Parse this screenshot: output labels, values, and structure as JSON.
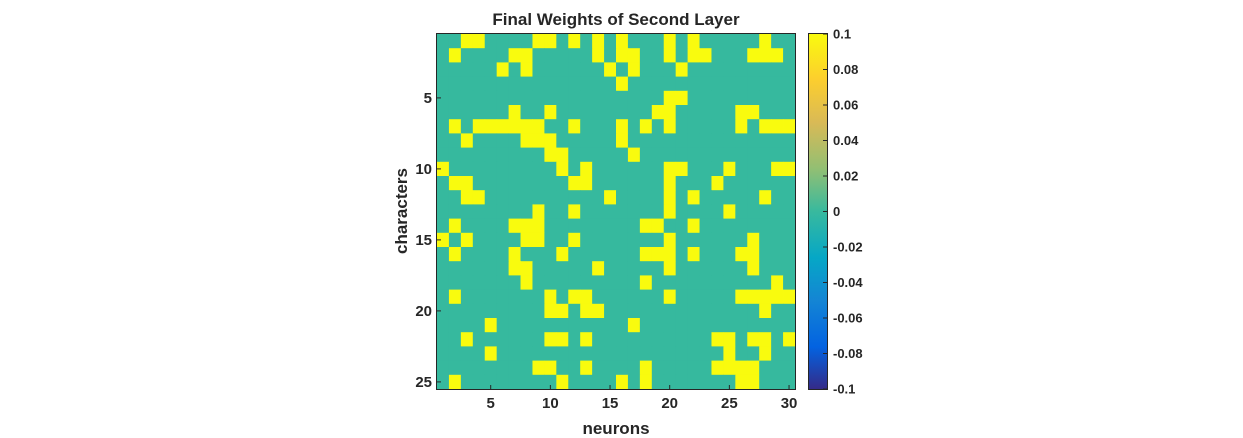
{
  "chart_data": {
    "type": "heatmap",
    "title": "Final Weights of Second Layer",
    "xlabel": "neurons",
    "ylabel": "characters",
    "n_cols": 30,
    "n_rows": 25,
    "xticks": [
      5,
      10,
      15,
      20,
      25,
      30
    ],
    "yticks": [
      5,
      10,
      15,
      20,
      25
    ],
    "clim": [
      -0.1,
      0.1
    ],
    "colorbar_ticks": [
      0.1,
      0.08,
      0.06,
      0.04,
      0.02,
      0,
      -0.02,
      -0.04,
      -0.06,
      -0.08,
      -0.1
    ],
    "colormap": "parula",
    "colors": {
      "high": "#f9fb0e",
      "low": "#36b99e",
      "frame": "#262626"
    },
    "grid": false,
    "values_legend": {
      "0": 0,
      "1": 0.1
    },
    "matrix": [
      "001100001101010100010100000100",
      "010000110000010110010110001110",
      "000001010000001010001000000000",
      "000000000000000100000000000000",
      "000000000000000000011000000000",
      "000000100100000000110000011000",
      "010111111001000101010000010111",
      "001000011100000100000000000000",
      "000000000110000010000000000000",
      "100000000010100000011000100011",
      "011000000001100000010001000000",
      "001100000000001000010100000100",
      "000000001001000000010000100000",
      "010000111000000001100100000000",
      "101000011001000000010000001000",
      "010000100010000001110100011000",
      "000000110000010000010000001000",
      "000000010000000001000000000010",
      "010000000101100000010000011111",
      "000000000110110000000000000100",
      "000010000000000010000000000000",
      "001000000110100000000001101101",
      "000010000000000000000000100100",
      "000000001100100001000001111000",
      "010000000010000101000000011000"
    ]
  }
}
